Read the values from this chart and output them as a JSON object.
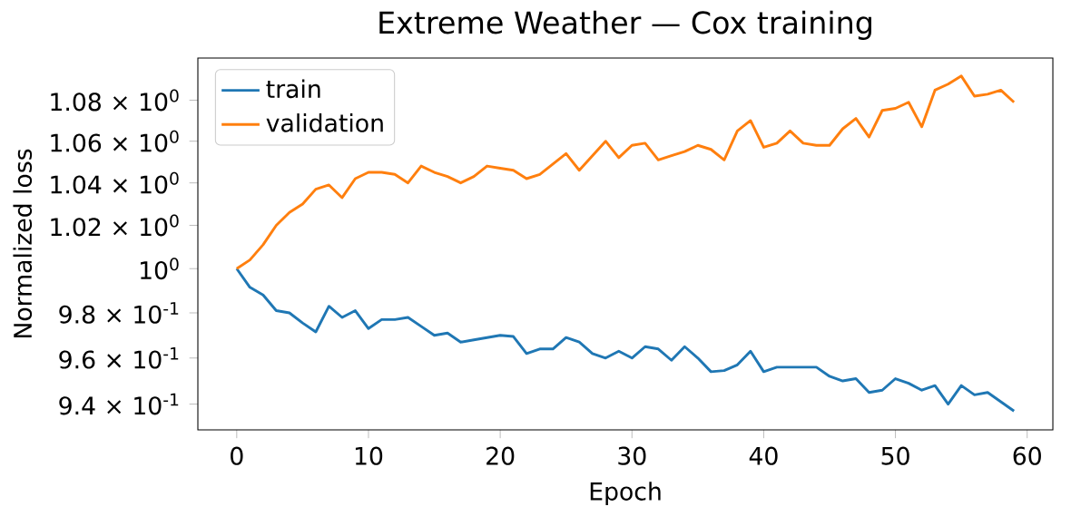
{
  "chart_data": {
    "type": "line",
    "title": "Extreme Weather — Cox training",
    "xlabel": "Epoch",
    "ylabel": "Normalized loss",
    "x": [
      0,
      1,
      2,
      3,
      4,
      5,
      6,
      7,
      8,
      9,
      10,
      11,
      12,
      13,
      14,
      15,
      16,
      17,
      18,
      19,
      20,
      21,
      22,
      23,
      24,
      25,
      26,
      27,
      28,
      29,
      30,
      31,
      32,
      33,
      34,
      35,
      36,
      37,
      38,
      39,
      40,
      41,
      42,
      43,
      44,
      45,
      46,
      47,
      48,
      49,
      50,
      51,
      52,
      53,
      54,
      55,
      56,
      57,
      58,
      59
    ],
    "series": [
      {
        "name": "train",
        "color": "#1f77b4",
        "values": [
          1.0,
          0.9915,
          0.988,
          0.981,
          0.98,
          0.9755,
          0.9715,
          0.983,
          0.978,
          0.981,
          0.973,
          0.977,
          0.977,
          0.978,
          0.974,
          0.97,
          0.971,
          0.967,
          0.968,
          0.969,
          0.97,
          0.9695,
          0.962,
          0.964,
          0.964,
          0.969,
          0.967,
          0.962,
          0.96,
          0.963,
          0.96,
          0.965,
          0.964,
          0.959,
          0.965,
          0.96,
          0.954,
          0.9545,
          0.957,
          0.963,
          0.954,
          0.956,
          0.956,
          0.956,
          0.956,
          0.952,
          0.95,
          0.951,
          0.945,
          0.946,
          0.951,
          0.949,
          0.946,
          0.948,
          0.94,
          0.948,
          0.944,
          0.945,
          0.941,
          0.937
        ]
      },
      {
        "name": "validation",
        "color": "#ff7f0e",
        "values": [
          1.0,
          1.004,
          1.011,
          1.02,
          1.026,
          1.03,
          1.037,
          1.039,
          1.033,
          1.042,
          1.045,
          1.045,
          1.044,
          1.04,
          1.048,
          1.045,
          1.043,
          1.04,
          1.043,
          1.048,
          1.047,
          1.046,
          1.042,
          1.044,
          1.049,
          1.054,
          1.046,
          1.053,
          1.06,
          1.052,
          1.058,
          1.059,
          1.051,
          1.053,
          1.055,
          1.058,
          1.056,
          1.051,
          1.065,
          1.07,
          1.057,
          1.059,
          1.065,
          1.059,
          1.058,
          1.058,
          1.066,
          1.071,
          1.062,
          1.075,
          1.076,
          1.079,
          1.067,
          1.085,
          1.088,
          1.092,
          1.082,
          1.083,
          1.085,
          1.079
        ]
      }
    ],
    "log": "y",
    "legend": "top left",
    "xlim": [
      -2.95,
      61.95
    ],
    "xticks": [
      0,
      10,
      20,
      30,
      40,
      50,
      60
    ],
    "ylim": [
      0.929,
      1.101
    ],
    "yticks": [
      {
        "value": 0.94,
        "label": "9.4 × 10$^{-1}$"
      },
      {
        "value": 0.96,
        "label": "9.6 × 10$^{-1}$"
      },
      {
        "value": 0.98,
        "label": "9.8 × 10$^{-1}$"
      },
      {
        "value": 1.0,
        "label": "10$^{0}$"
      },
      {
        "value": 1.02,
        "label": "1.02 × 10$^{0}$"
      },
      {
        "value": 1.04,
        "label": "1.04 × 10$^{0}$"
      },
      {
        "value": 1.06,
        "label": "1.06 × 10$^{0}$"
      },
      {
        "value": 1.08,
        "label": "1.08 × 10$^{0}$"
      }
    ]
  }
}
